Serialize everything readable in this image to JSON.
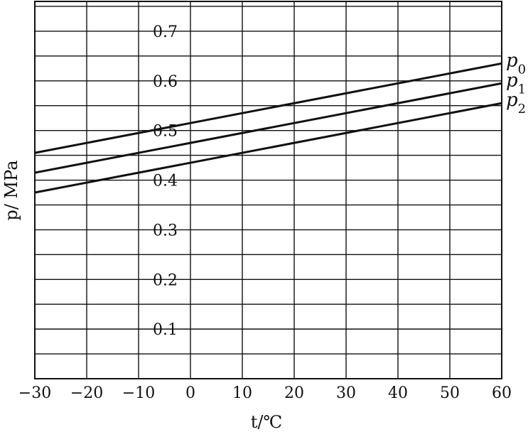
{
  "chart_data": {
    "type": "line",
    "xlabel": "t/℃",
    "ylabel": "p/ MPa",
    "xlim": [
      -30,
      60
    ],
    "ylim": [
      0,
      0.76
    ],
    "grid": true,
    "x_ticks": [
      -30,
      -20,
      -10,
      0,
      10,
      20,
      30,
      40,
      50,
      60
    ],
    "x_tick_labels": [
      "−30",
      "−20",
      "−10",
      "0",
      "10",
      "20",
      "30",
      "40",
      "50",
      "60"
    ],
    "y_ticks": [
      0.1,
      0.2,
      0.3,
      0.4,
      0.5,
      0.6,
      0.7
    ],
    "y_tick_labels": [
      "0.1",
      "0.2",
      "0.3",
      "0.4",
      "0.5",
      "0.6",
      "0.7"
    ],
    "series": [
      {
        "name": "p0",
        "x": [
          -30,
          60
        ],
        "y": [
          0.455,
          0.635
        ]
      },
      {
        "name": "p1",
        "x": [
          -30,
          60
        ],
        "y": [
          0.415,
          0.595
        ]
      },
      {
        "name": "p2",
        "x": [
          -30,
          60
        ],
        "y": [
          0.375,
          0.555
        ]
      }
    ]
  }
}
